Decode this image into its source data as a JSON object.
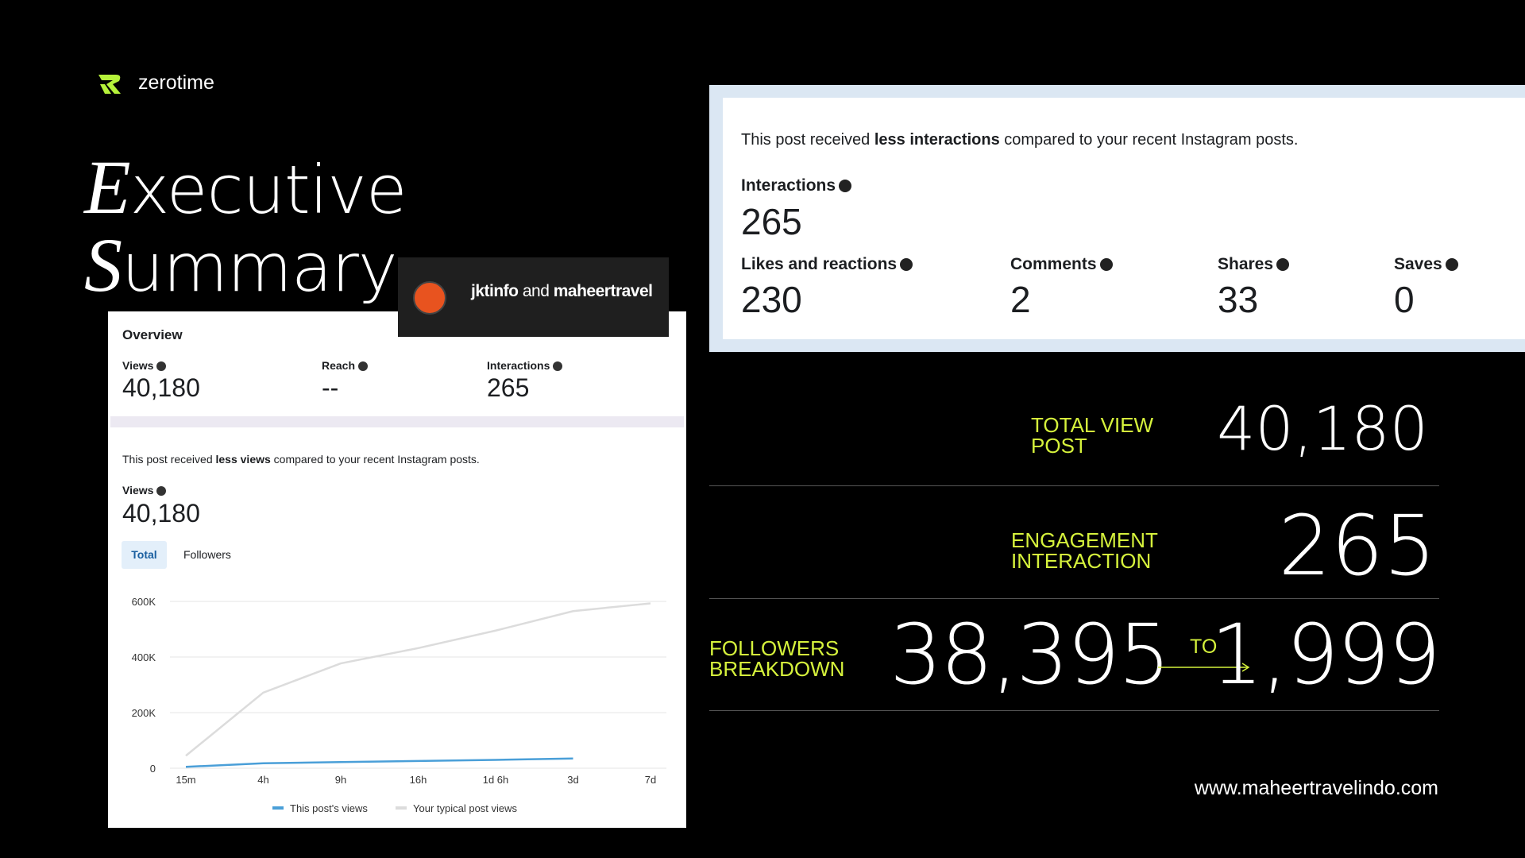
{
  "brand": "zerotime",
  "title": {
    "first": "Executive",
    "second": "Summary"
  },
  "post_header": {
    "account1": "jktinfo",
    "joiner": "and",
    "account2": "maheertravel"
  },
  "overview": {
    "heading": "Overview",
    "metrics": [
      {
        "label": "Views",
        "value": "40,180"
      },
      {
        "label": "Reach",
        "value": "--"
      },
      {
        "label": "Interactions",
        "value": "265"
      }
    ]
  },
  "views_section": {
    "note": [
      "This post received ",
      "less views",
      " compared to your recent Instagram posts."
    ],
    "label": "Views",
    "value": "40,180",
    "tabs": [
      "Total",
      "Followers"
    ]
  },
  "chart_data": {
    "type": "line",
    "categories": [
      "15m",
      "4h",
      "9h",
      "16h",
      "1d 6h",
      "3d",
      "7d"
    ],
    "ylim": [
      0,
      600000
    ],
    "yticks": [
      0,
      {
        "value": 200000,
        "label": "200K"
      },
      {
        "value": 400000,
        "label": "400K"
      },
      {
        "value": 600000,
        "label": "600K"
      }
    ],
    "grid": true,
    "series": [
      {
        "name": "This post's views",
        "color": "#4a9fd8",
        "values": [
          5000,
          18000,
          22000,
          26000,
          30000,
          35000,
          null
        ]
      },
      {
        "name": "Your typical post views",
        "color": "#dcdcdc",
        "values": [
          45000,
          272000,
          377000,
          432000,
          495000,
          565000,
          593000
        ]
      }
    ]
  },
  "interactions_card": {
    "note": [
      "This post received ",
      "less interactions",
      " compared to your recent Instagram posts."
    ],
    "label": "Interactions",
    "value": "265",
    "metrics": [
      {
        "label": "Likes and reactions",
        "value": "230"
      },
      {
        "label": "Comments",
        "value": "2"
      },
      {
        "label": "Shares",
        "value": "33"
      },
      {
        "label": "Saves",
        "value": "0"
      }
    ]
  },
  "summary": {
    "rows": [
      {
        "label": [
          "TOTAL VIEW",
          "POST"
        ],
        "value": "40,180"
      },
      {
        "label": [
          "ENGAGEMENT",
          "INTERACTION"
        ],
        "value": "265"
      }
    ],
    "followers": {
      "label": [
        "FOLLOWERS",
        "BREAKDOWN"
      ],
      "from": "38,395",
      "joiner": "TO",
      "to": "1,999"
    }
  },
  "website": "www.maheertravelindo.com"
}
